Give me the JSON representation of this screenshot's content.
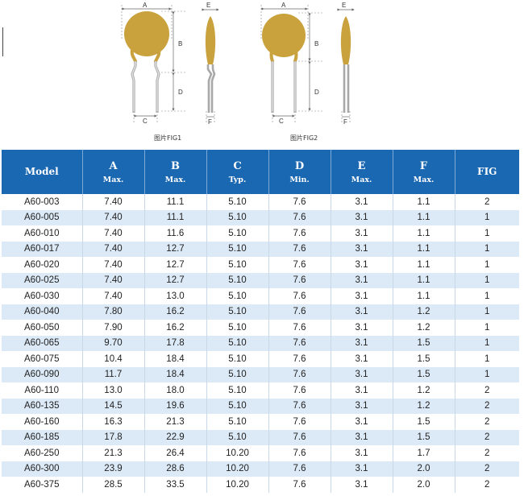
{
  "figures": {
    "fig1_caption": "图片FIG1",
    "fig2_caption": "图片FIG2",
    "dim_labels": {
      "a": "A",
      "b": "B",
      "c": "C",
      "d": "D",
      "e": "E",
      "f": "F"
    }
  },
  "colors": {
    "header_bg": "#1a67b2",
    "row_alt_bg": "#dce9f6",
    "body_disc": "#c9a13d",
    "lead": "#b8b8b8"
  },
  "table": {
    "headers": [
      {
        "main": "Model",
        "sub": ""
      },
      {
        "main": "A",
        "sub": "Max."
      },
      {
        "main": "B",
        "sub": "Max."
      },
      {
        "main": "C",
        "sub": "Typ."
      },
      {
        "main": "D",
        "sub": "Min."
      },
      {
        "main": "E",
        "sub": "Max."
      },
      {
        "main": "F",
        "sub": "Max."
      },
      {
        "main": "FIG",
        "sub": ""
      }
    ],
    "rows": [
      [
        "A60-003",
        "7.40",
        "11.1",
        "5.10",
        "7.6",
        "3.1",
        "1.1",
        "2"
      ],
      [
        "A60-005",
        "7.40",
        "11.1",
        "5.10",
        "7.6",
        "3.1",
        "1.1",
        "1"
      ],
      [
        "A60-010",
        "7.40",
        "11.6",
        "5.10",
        "7.6",
        "3.1",
        "1.1",
        "1"
      ],
      [
        "A60-017",
        "7.40",
        "12.7",
        "5.10",
        "7.6",
        "3.1",
        "1.1",
        "1"
      ],
      [
        "A60-020",
        "7.40",
        "12.7",
        "5.10",
        "7.6",
        "3.1",
        "1.1",
        "1"
      ],
      [
        "A60-025",
        "7.40",
        "12.7",
        "5.10",
        "7.6",
        "3.1",
        "1.1",
        "1"
      ],
      [
        "A60-030",
        "7.40",
        "13.0",
        "5.10",
        "7.6",
        "3.1",
        "1.1",
        "1"
      ],
      [
        "A60-040",
        "7.80",
        "16.2",
        "5.10",
        "7.6",
        "3.1",
        "1.2",
        "1"
      ],
      [
        "A60-050",
        "7.90",
        "16.2",
        "5.10",
        "7.6",
        "3.1",
        "1.2",
        "1"
      ],
      [
        "A60-065",
        "9.70",
        "17.8",
        "5.10",
        "7.6",
        "3.1",
        "1.5",
        "1"
      ],
      [
        "A60-075",
        "10.4",
        "18.4",
        "5.10",
        "7.6",
        "3.1",
        "1.5",
        "1"
      ],
      [
        "A60-090",
        "11.7",
        "18.4",
        "5.10",
        "7.6",
        "3.1",
        "1.5",
        "1"
      ],
      [
        "A60-110",
        "13.0",
        "18.0",
        "5.10",
        "7.6",
        "3.1",
        "1.2",
        "2"
      ],
      [
        "A60-135",
        "14.5",
        "19.6",
        "5.10",
        "7.6",
        "3.1",
        "1.2",
        "2"
      ],
      [
        "A60-160",
        "16.3",
        "21.3",
        "5.10",
        "7.6",
        "3.1",
        "1.5",
        "2"
      ],
      [
        "A60-185",
        "17.8",
        "22.9",
        "5.10",
        "7.6",
        "3.1",
        "1.5",
        "2"
      ],
      [
        "A60-250",
        "21.3",
        "26.4",
        "10.20",
        "7.6",
        "3.1",
        "1.7",
        "2"
      ],
      [
        "A60-300",
        "23.9",
        "28.6",
        "10.20",
        "7.6",
        "3.1",
        "2.0",
        "2"
      ],
      [
        "A60-375",
        "28.5",
        "33.5",
        "10.20",
        "7.6",
        "3.1",
        "2.0",
        "2"
      ]
    ]
  }
}
